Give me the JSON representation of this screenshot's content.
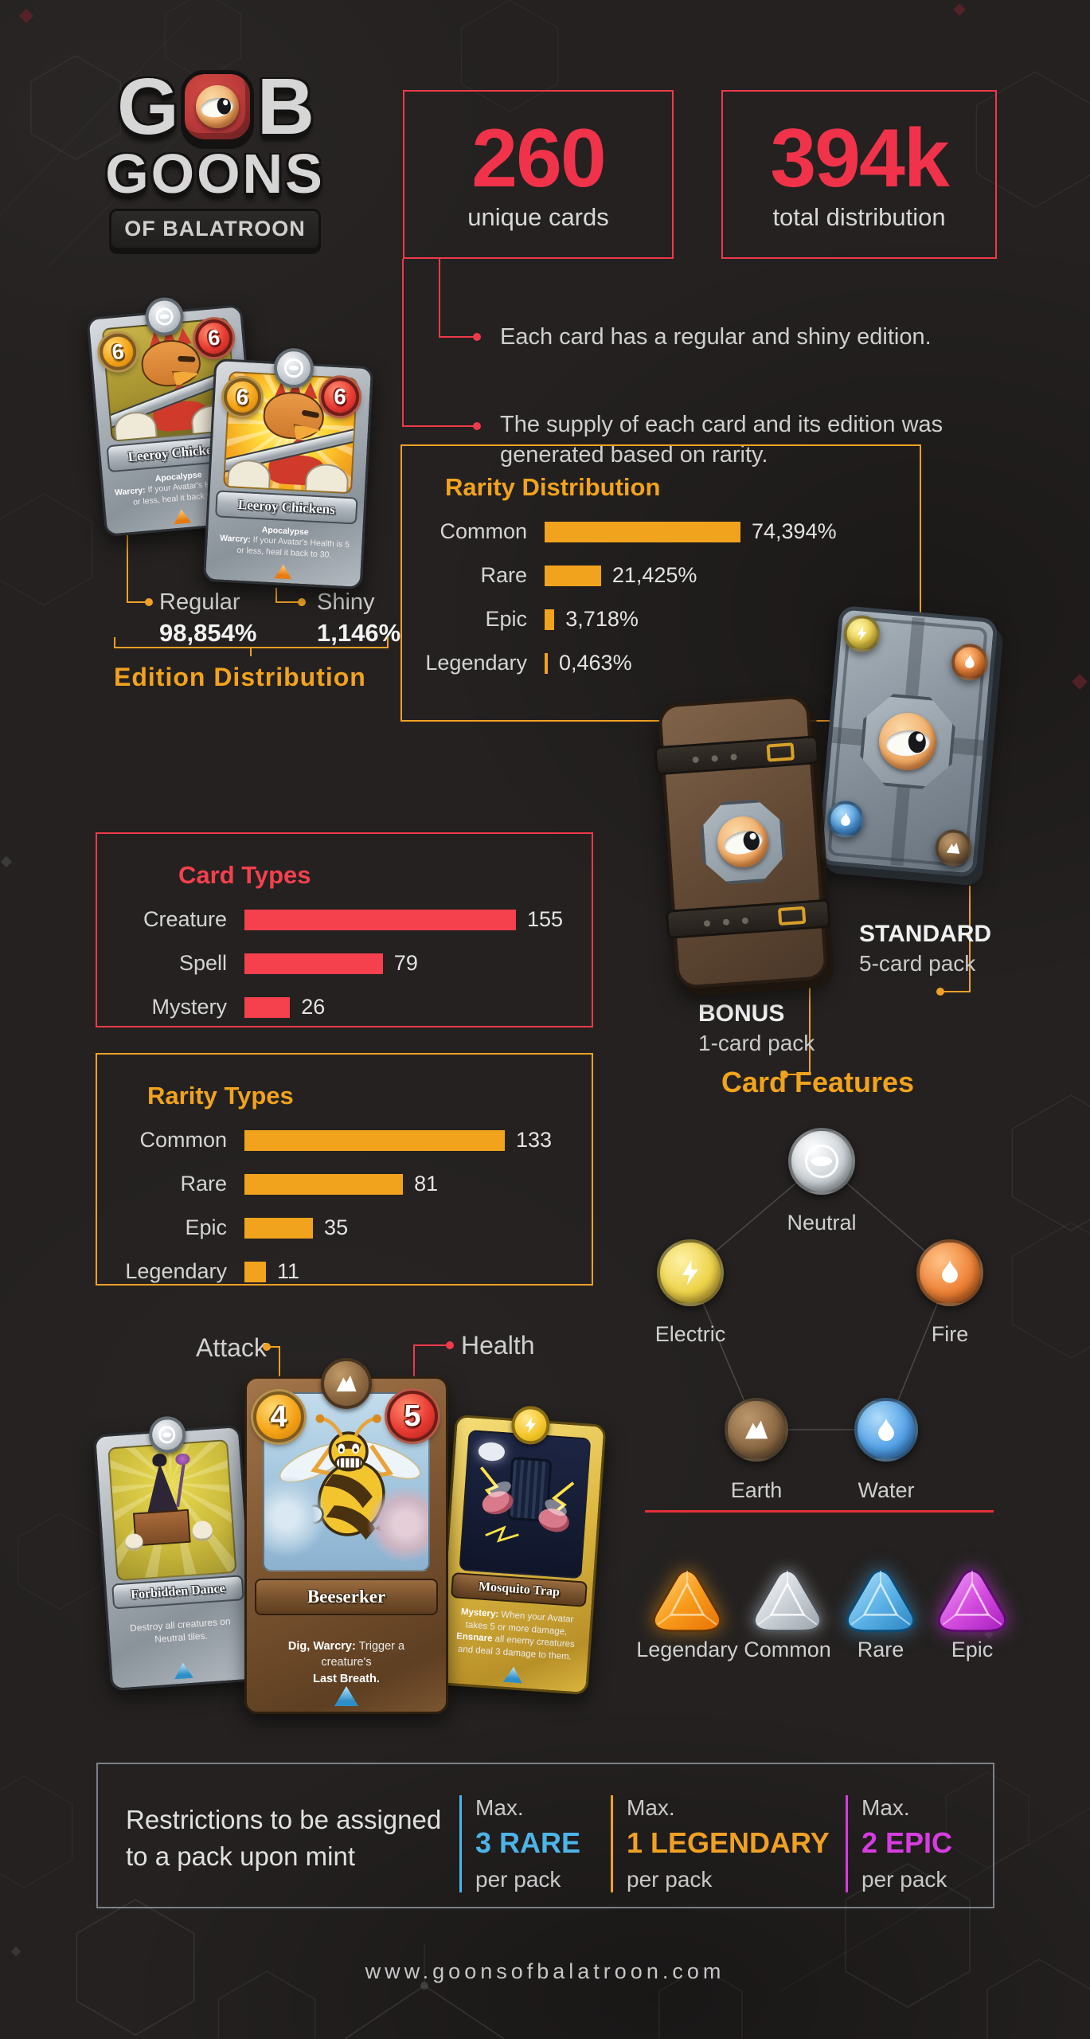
{
  "logo": {
    "g": "G",
    "b": "B",
    "goons": "GOONS",
    "banner": "OF BALATROON"
  },
  "stats": [
    {
      "value": "260",
      "label": "unique cards"
    },
    {
      "value": "394k",
      "label": "total distribution"
    }
  ],
  "bullets": [
    "Each card has a regular and shiny edition.",
    "The supply of each card and its edition was generated based on rarity."
  ],
  "edition": {
    "title": "Edition Distribution",
    "items": [
      {
        "name": "Regular",
        "value": "98,854%"
      },
      {
        "name": "Shiny",
        "value": "1,146%"
      }
    ]
  },
  "chart_data": [
    {
      "type": "bar",
      "orientation": "horizontal",
      "title": "Rarity Distribution",
      "categories": [
        "Common",
        "Rare",
        "Epic",
        "Legendary"
      ],
      "values": [
        74.394,
        21.425,
        3.718,
        0.463
      ],
      "value_labels": [
        "74,394%",
        "21,425%",
        "3,718%",
        "0,463%"
      ],
      "bar_color": "#f2a31d",
      "xlim": [
        0,
        75
      ],
      "grid": false,
      "legend": false
    },
    {
      "type": "bar",
      "orientation": "horizontal",
      "title": "Card Types",
      "categories": [
        "Creature",
        "Spell",
        "Mystery"
      ],
      "values": [
        155,
        79,
        26
      ],
      "value_labels": [
        "155",
        "79",
        "26"
      ],
      "bar_color": "#f5404e",
      "xlim": [
        0,
        160
      ],
      "grid": false,
      "legend": false
    },
    {
      "type": "bar",
      "orientation": "horizontal",
      "title": "Rarity Types",
      "categories": [
        "Common",
        "Rare",
        "Epic",
        "Legendary"
      ],
      "values": [
        133,
        81,
        35,
        11
      ],
      "value_labels": [
        "133",
        "81",
        "35",
        "11"
      ],
      "bar_color": "#f2a31d",
      "xlim": [
        0,
        140
      ],
      "grid": false,
      "legend": false
    },
    {
      "type": "bar",
      "orientation": "horizontal",
      "title": "Edition Distribution",
      "categories": [
        "Regular",
        "Shiny"
      ],
      "values": [
        98.854,
        1.146
      ],
      "value_labels": [
        "98,854%",
        "1,146%"
      ],
      "bar_color": "#f2a31d",
      "note": "depicted as two labeled card illustrations"
    }
  ],
  "packs": {
    "standard": {
      "name": "STANDARD",
      "desc": "5-card pack"
    },
    "bonus": {
      "name": "BONUS",
      "desc": "1-card pack"
    }
  },
  "features": {
    "title": "Card Features",
    "elements": [
      "Neutral",
      "Electric",
      "Fire",
      "Earth",
      "Water"
    ]
  },
  "gems": [
    {
      "name": "Legendary",
      "color": "#f0820e"
    },
    {
      "name": "Common",
      "color": "#c9ced3"
    },
    {
      "name": "Rare",
      "color": "#3f9fd8"
    },
    {
      "name": "Epic",
      "color": "#cf3ce0"
    }
  ],
  "annotations": {
    "attack": "Attack",
    "health": "Health"
  },
  "cards": {
    "leeroy": {
      "name": "Leeroy Chickens",
      "cost": "6",
      "health": "6",
      "keyword": "Apocalypse",
      "ability": "Warcry:",
      "text": "If your Avatar's Health is 5 or less, heal it back to 30."
    },
    "forbidden": {
      "name": "Forbidden Dance",
      "text": "Destroy all creatures on Neutral tiles."
    },
    "beeserker": {
      "name": "Beeserker",
      "attack": "4",
      "health": "5",
      "k1": "Dig, Warcry:",
      "t1": "Trigger a creature's",
      "k2": "Last Breath."
    },
    "mosquito": {
      "name": "Mosquito Trap",
      "k1": "Mystery:",
      "t1": "When your Avatar takes 5 or more damage,",
      "k2": "Ensnare",
      "t2": "all enemy creatures and deal 3 damage to them."
    }
  },
  "restrictions": {
    "intro_line1": "Restrictions to be assigned",
    "intro_line2": "to a pack upon mint",
    "items": [
      {
        "max": "Max.",
        "value": "3 RARE",
        "per": "per pack",
        "color": "#4cb4e8"
      },
      {
        "max": "Max.",
        "value": "1 LEGENDARY",
        "per": "per pack",
        "color": "#f0a124"
      },
      {
        "max": "Max.",
        "value": "2 EPIC",
        "per": "per pack",
        "color": "#d63ce0"
      }
    ]
  },
  "footer": {
    "url": "www.goonsofbalatroon.com"
  },
  "colors": {
    "background": "#242120",
    "red_accent": "#ef3a4a",
    "orange_accent": "#f0a124",
    "blue_accent": "#4cb4e8",
    "magenta_accent": "#d63ce0"
  }
}
